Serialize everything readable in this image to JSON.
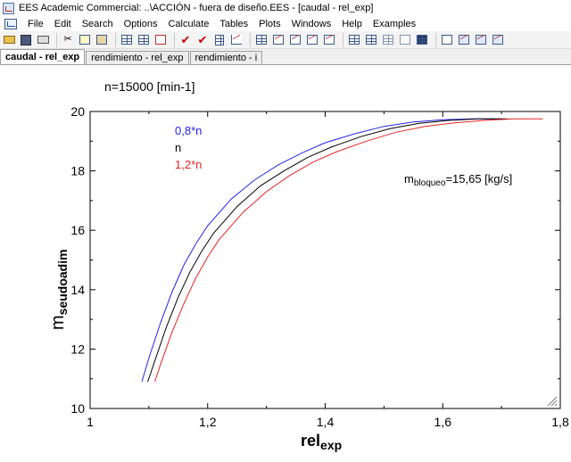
{
  "window": {
    "title": "EES Academic Commercial:  ..\\ACCIÓN - fuera de diseño.EES - [caudal - rel_exp]"
  },
  "menu": [
    "File",
    "Edit",
    "Search",
    "Options",
    "Calculate",
    "Tables",
    "Plots",
    "Windows",
    "Help",
    "Examples"
  ],
  "toolbar": {
    "icons": [
      "open-icon",
      "save-icon",
      "print-icon",
      "sep",
      "cut-icon",
      "copy-icon",
      "paste-icon",
      "sep",
      "equations-window-icon",
      "formatted-equations-icon",
      "solution-window-icon",
      "sep",
      "check-icon",
      "solve-icon",
      "calculator-icon",
      "plot-window-icon",
      "sep",
      "parametric-table-icon",
      "plot-icon",
      "plot-icon-2",
      "plot-icon-3",
      "plot-icon-4",
      "sep",
      "window-icon-1",
      "window-icon-2",
      "window-icon-3",
      "arrays-icon",
      "table-icon",
      "sep",
      "text-icon",
      "diagram-icon",
      "diagram-icon-2",
      "diagram-icon-3"
    ]
  },
  "tabs": [
    {
      "label": "caudal - rel_exp",
      "active": true
    },
    {
      "label": "rendimiento - rel_exp",
      "active": false
    },
    {
      "label": "rendimiento - i",
      "active": false
    }
  ],
  "chart_data": {
    "type": "line",
    "title": "n=15000 [min-1]",
    "xlabel": "rel",
    "xlabel_sub": "exp",
    "ylabel": "m",
    "ylabel_sub": "seudoadim",
    "xlim": [
      1,
      1.8
    ],
    "ylim": [
      10,
      20
    ],
    "x_ticks": [
      "1",
      "1,2",
      "1,4",
      "1,6",
      "1,8"
    ],
    "y_ticks": [
      "10",
      "12",
      "14",
      "16",
      "18",
      "20"
    ],
    "grid": false,
    "legend_placement": "top-left",
    "annotation": {
      "text_main": "m",
      "text_sub": "bloqueo",
      "text_rest": "=15,65 [kg/s]"
    },
    "series": [
      {
        "name": "0,8*n",
        "color": "#2323e6",
        "x": [
          1.088,
          1.1,
          1.12,
          1.14,
          1.16,
          1.18,
          1.2,
          1.24,
          1.28,
          1.32,
          1.36,
          1.4,
          1.45,
          1.5,
          1.55,
          1.6,
          1.65,
          1.7
        ],
        "y": [
          10.9,
          11.7,
          12.9,
          13.95,
          14.85,
          15.55,
          16.15,
          17.05,
          17.7,
          18.2,
          18.6,
          18.95,
          19.25,
          19.5,
          19.65,
          19.72,
          19.75,
          19.75
        ]
      },
      {
        "name": "n",
        "color": "#000000",
        "x": [
          1.098,
          1.11,
          1.13,
          1.15,
          1.17,
          1.19,
          1.21,
          1.25,
          1.29,
          1.33,
          1.37,
          1.41,
          1.46,
          1.51,
          1.56,
          1.61,
          1.66,
          1.71
        ],
        "y": [
          10.9,
          11.6,
          12.75,
          13.75,
          14.6,
          15.3,
          15.9,
          16.8,
          17.5,
          18.0,
          18.45,
          18.8,
          19.15,
          19.42,
          19.6,
          19.7,
          19.75,
          19.75
        ]
      },
      {
        "name": "1,2*n",
        "color": "#e62323",
        "x": [
          1.11,
          1.12,
          1.14,
          1.16,
          1.18,
          1.2,
          1.22,
          1.26,
          1.3,
          1.34,
          1.38,
          1.42,
          1.47,
          1.52,
          1.57,
          1.62,
          1.67,
          1.72,
          1.77
        ],
        "y": [
          10.9,
          11.5,
          12.6,
          13.55,
          14.4,
          15.1,
          15.7,
          16.6,
          17.3,
          17.85,
          18.3,
          18.65,
          19.0,
          19.3,
          19.5,
          19.62,
          19.7,
          19.75,
          19.75
        ]
      }
    ]
  }
}
